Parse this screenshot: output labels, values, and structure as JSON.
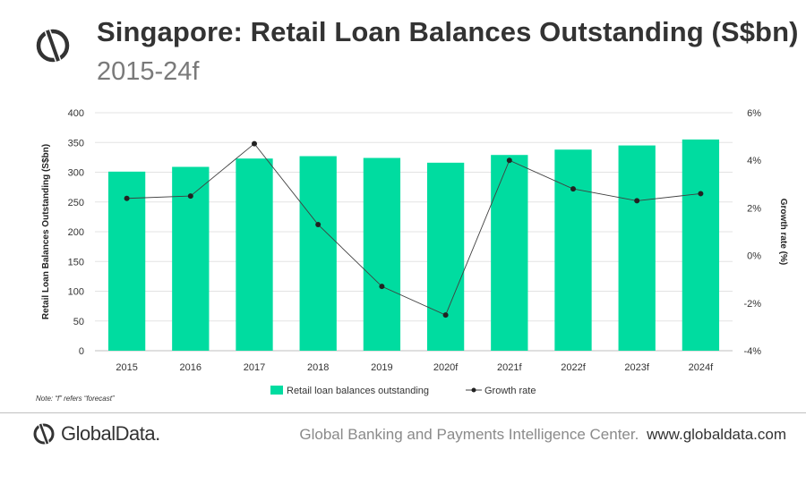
{
  "header": {
    "title": "Singapore: Retail Loan Balances Outstanding (S$bn)",
    "subtitle": "2015-24f"
  },
  "note": "Note:  “f” refers “forecast”",
  "footer": {
    "logo_text": "GlobalData.",
    "center_text": "Global Banking and Payments Intelligence Center.",
    "url": "www.globaldata.com"
  },
  "colors": {
    "bar": "#00DCA0",
    "line": "#404040",
    "grid": "#e3e3e3"
  },
  "chart_data": {
    "type": "bar",
    "categories": [
      "2015",
      "2016",
      "2017",
      "2018",
      "2019",
      "2020f",
      "2021f",
      "2022f",
      "2023f",
      "2024f"
    ],
    "series": [
      {
        "name": "Retail loan balances outstanding",
        "type": "bar",
        "axis": "left",
        "values": [
          301,
          309,
          323,
          327,
          324,
          316,
          329,
          338,
          345,
          355
        ]
      },
      {
        "name": "Growth rate",
        "type": "line",
        "axis": "right",
        "values": [
          2.4,
          2.5,
          4.7,
          1.3,
          -1.3,
          -2.5,
          4.0,
          2.8,
          2.3,
          2.6
        ]
      }
    ],
    "ylabel": "Retail Loan Balances Outstanding (S$bn)",
    "ylabel_right": "Growth rate (%)",
    "ylim": [
      0,
      400
    ],
    "ylim_right": [
      -4,
      6
    ],
    "yticks": [
      "0",
      "50",
      "100",
      "150",
      "200",
      "250",
      "300",
      "350",
      "400"
    ],
    "yticks_right": [
      "-4%",
      "-2%",
      "0%",
      "2%",
      "4%",
      "6%"
    ],
    "grid": true,
    "legend_position": "bottom"
  }
}
